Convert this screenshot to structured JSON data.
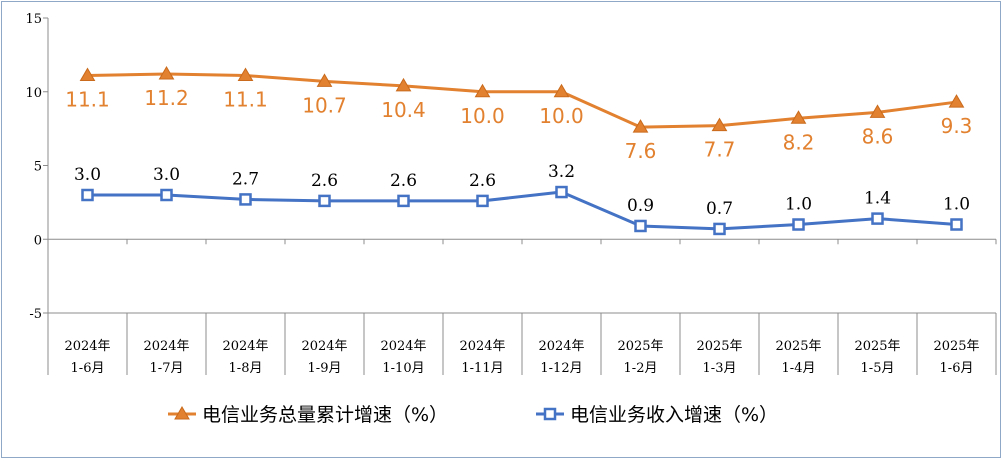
{
  "chart_data": {
    "type": "line",
    "categories": [
      [
        "2024年",
        "1-6月"
      ],
      [
        "2024年",
        "1-7月"
      ],
      [
        "2024年",
        "1-8月"
      ],
      [
        "2024年",
        "1-9月"
      ],
      [
        "2024年",
        "1-10月"
      ],
      [
        "2024年",
        "1-11月"
      ],
      [
        "2024年",
        "1-12月"
      ],
      [
        "2025年",
        "1-2月"
      ],
      [
        "2025年",
        "1-3月"
      ],
      [
        "2025年",
        "1-4月"
      ],
      [
        "2025年",
        "1-5月"
      ],
      [
        "2025年",
        "1-6月"
      ]
    ],
    "series": [
      {
        "name": "电信业务总量累计增速（%）",
        "values": [
          11.1,
          11.2,
          11.1,
          10.7,
          10.4,
          10.0,
          10.0,
          7.6,
          7.7,
          8.2,
          8.6,
          9.3
        ],
        "labels": [
          "11.1",
          "11.2",
          "11.1",
          "10.7",
          "10.4",
          "10.0",
          "10.0",
          "7.6",
          "7.7",
          "8.2",
          "8.6",
          "9.3"
        ],
        "color": "#e2812f",
        "marker": "triangle"
      },
      {
        "name": "电信业务收入增速（%）",
        "values": [
          3.0,
          3.0,
          2.7,
          2.6,
          2.6,
          2.6,
          3.2,
          0.9,
          0.7,
          1.0,
          1.4,
          1.0
        ],
        "labels": [
          "3.0",
          "3.0",
          "2.7",
          "2.6",
          "2.6",
          "2.6",
          "3.2",
          "0.9",
          "0.7",
          "1.0",
          "1.4",
          "1.0"
        ],
        "color": "#4472c4",
        "marker": "square"
      }
    ],
    "ylim": [
      -5,
      15
    ],
    "yticks": [
      "-5",
      "0",
      "5",
      "10",
      "15"
    ],
    "title": "",
    "xlabel": "",
    "ylabel": "",
    "grid": false,
    "legend_position": "bottom"
  }
}
